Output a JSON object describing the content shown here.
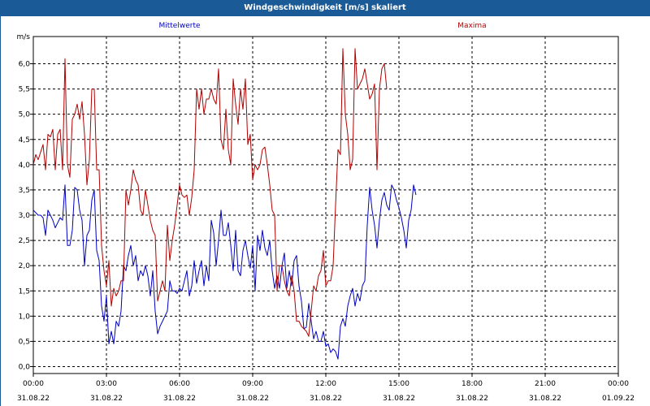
{
  "window": {
    "title": "Windgeschwindigkeit [m/s] skaliert"
  },
  "chart_data": {
    "type": "line",
    "title": "Windgeschwindigkeit [m/s] skaliert",
    "ylabel": "m/s",
    "ylim": [
      -0.1,
      6.6
    ],
    "yticks": [
      "0,0",
      "0,5",
      "1,0",
      "1,5",
      "2,0",
      "2,5",
      "3,0",
      "3,5",
      "4,0",
      "4,5",
      "5,0",
      "5,5",
      "6,0"
    ],
    "ytick_values": [
      0,
      0.5,
      1,
      1.5,
      2,
      2.5,
      3,
      3.5,
      4,
      4.5,
      5,
      5.5,
      6
    ],
    "xlim_hours": [
      0,
      24
    ],
    "xticks": [
      {
        "h": 0,
        "time": "00:00",
        "date": "31.08.22"
      },
      {
        "h": 3,
        "time": "03:00",
        "date": "31.08.22"
      },
      {
        "h": 6,
        "time": "06:00",
        "date": "31.08.22"
      },
      {
        "h": 9,
        "time": "09:00",
        "date": "31.08.22"
      },
      {
        "h": 12,
        "time": "12:00",
        "date": "31.08.22"
      },
      {
        "h": 15,
        "time": "15:00",
        "date": "31.08.22"
      },
      {
        "h": 18,
        "time": "18:00",
        "date": "31.08.22"
      },
      {
        "h": 21,
        "time": "21:00",
        "date": "31.08.22"
      },
      {
        "h": 24,
        "time": "00:00",
        "date": "01.09.22"
      }
    ],
    "grid": true,
    "x_step_hours": 0.1,
    "series": [
      {
        "name": "Mittelwerte",
        "color": "#0000c0",
        "values": [
          3.1,
          3.05,
          3.0,
          3.0,
          2.95,
          2.6,
          3.1,
          3.0,
          2.9,
          2.75,
          2.85,
          2.95,
          2.9,
          3.6,
          2.4,
          2.4,
          2.7,
          3.55,
          3.5,
          3.1,
          2.9,
          2.0,
          2.6,
          2.7,
          3.3,
          3.5,
          2.3,
          2.1,
          1.2,
          0.9,
          1.4,
          0.45,
          0.7,
          0.45,
          0.9,
          0.8,
          1.1,
          2.0,
          1.9,
          2.2,
          2.4,
          2.0,
          2.2,
          1.7,
          1.9,
          1.8,
          2.0,
          1.8,
          1.4,
          1.9,
          1.1,
          0.65,
          0.8,
          0.9,
          1.0,
          1.1,
          1.7,
          1.5,
          1.5,
          1.45,
          1.55,
          1.5,
          1.7,
          1.9,
          1.4,
          1.6,
          2.1,
          1.65,
          1.9,
          2.1,
          1.6,
          2.0,
          1.7,
          2.9,
          2.65,
          2.0,
          2.5,
          3.1,
          2.6,
          2.6,
          2.85,
          2.4,
          1.9,
          2.7,
          1.9,
          1.8,
          2.3,
          2.5,
          2.2,
          1.95,
          2.4,
          1.5,
          2.6,
          2.3,
          2.7,
          2.35,
          2.2,
          2.5,
          1.9,
          1.55,
          1.8,
          1.55,
          2.0,
          2.25,
          1.55,
          1.9,
          1.6,
          2.1,
          2.2,
          1.6,
          1.3,
          0.75,
          0.78,
          1.25,
          0.9,
          0.55,
          0.7,
          0.5,
          0.5,
          0.7,
          0.4,
          0.45,
          0.28,
          0.35,
          0.3,
          0.15,
          0.8,
          0.95,
          0.8,
          1.2,
          1.4,
          1.55,
          1.2,
          1.45,
          1.3,
          1.6,
          1.7,
          2.8,
          3.55,
          3.1,
          2.8,
          2.35,
          2.9,
          3.3,
          3.45,
          3.2,
          3.1,
          3.6,
          3.5,
          3.3,
          3.15,
          2.95,
          2.7,
          2.35,
          2.9,
          3.1,
          3.6,
          3.4
        ]
      },
      {
        "name": "Maxima",
        "color": "#b00000",
        "values": [
          4.0,
          4.2,
          4.1,
          4.25,
          4.4,
          3.9,
          4.6,
          4.55,
          4.7,
          3.9,
          4.6,
          4.7,
          3.9,
          6.1,
          4.0,
          3.75,
          4.9,
          5.0,
          5.2,
          4.9,
          5.25,
          4.6,
          3.6,
          4.1,
          5.5,
          5.5,
          3.9,
          3.9,
          2.4,
          1.9,
          1.6,
          2.1,
          1.2,
          1.55,
          1.4,
          1.5,
          1.7,
          1.7,
          3.5,
          3.2,
          3.5,
          3.9,
          3.7,
          3.6,
          3.1,
          3.0,
          3.5,
          3.2,
          2.9,
          2.7,
          2.6,
          1.3,
          1.5,
          1.7,
          1.5,
          2.8,
          2.1,
          2.5,
          2.8,
          3.2,
          3.6,
          3.4,
          3.35,
          3.4,
          3.0,
          3.35,
          3.9,
          5.5,
          5.1,
          5.5,
          5.0,
          5.3,
          5.3,
          5.5,
          5.3,
          5.2,
          5.9,
          4.5,
          4.3,
          5.1,
          4.3,
          4.0,
          5.7,
          5.2,
          4.8,
          5.5,
          5.1,
          5.7,
          4.4,
          4.6,
          3.7,
          4.0,
          3.9,
          4.0,
          4.3,
          4.35,
          4.0,
          3.6,
          3.1,
          3.0,
          1.5,
          2.0,
          2.0,
          1.7,
          1.5,
          1.4,
          1.8,
          1.5,
          0.9,
          0.9,
          0.8,
          0.75,
          0.7,
          0.6,
          1.1,
          1.6,
          1.5,
          1.8,
          1.9,
          2.3,
          1.6,
          1.7,
          1.7,
          2.0,
          3.2,
          4.3,
          4.2,
          6.3,
          5.0,
          4.6,
          3.9,
          4.1,
          6.3,
          5.5,
          5.6,
          5.7,
          5.9,
          5.6,
          5.3,
          5.4,
          5.6,
          3.9,
          5.5,
          5.9,
          6.0,
          5.5
        ]
      }
    ]
  }
}
